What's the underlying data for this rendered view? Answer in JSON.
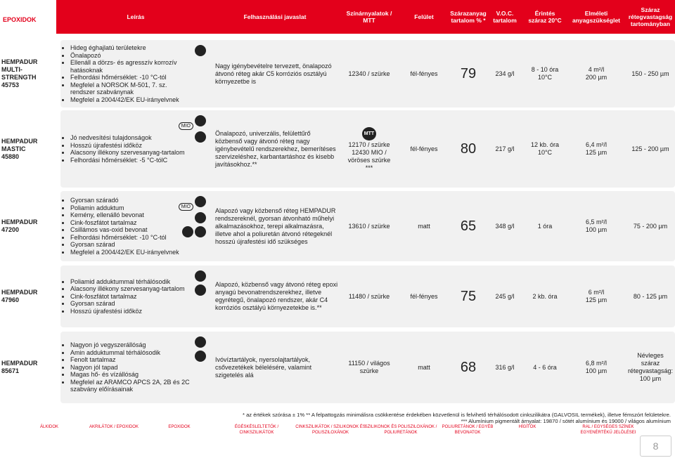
{
  "header": {
    "section": "EPOXIDOK",
    "columns": [
      "Leírás",
      "Felhasználási javaslat",
      "Színárnyalatok / MTT",
      "Felület",
      "Szárazanyag tartalom % *",
      "V.O.C. tartalom",
      "Érintés száraz 20°C",
      "Elméleti anyagszükséglet",
      "Száraz rétegvastagság tartományban"
    ]
  },
  "rows": [
    {
      "name": [
        "HEMPADUR",
        "MULTI-",
        "STRENGTH",
        "45753"
      ],
      "badges": [],
      "features": [
        "Hideg éghajlatú területekre",
        "Önalapozó",
        "Ellenáll a dörzs- és agresszív korrozív hatásoknak",
        "Felhordási hőmérséklet: -10 °C-tól",
        "Megfelel a NORSOK M-501, 7. sz. rendszer szabványnak",
        "Megfelel a 2004/42/EK EU-irányelvnek"
      ],
      "usage": "Nagy igénybevételre tervezett, önalapozó átvonó réteg akár C5 korróziós osztályú környezetbe is",
      "color_badge": [],
      "color": [
        "12340 / szürke"
      ],
      "surface": "fél-fényes",
      "solids": "79",
      "voc": "234 g/l",
      "touch_dry": [
        "8 - 10 óra",
        "10°C"
      ],
      "coverage": [
        "4 m²/l",
        "200 µm"
      ],
      "thickness": "150 - 250 µm"
    },
    {
      "name": [
        "HEMPADUR",
        "MASTIC",
        "45880"
      ],
      "badges": [
        "MIO"
      ],
      "features": [
        "Jó nedvesítési tulajdonságok",
        "Hosszú újrafestési időköz",
        "Alacsony illékony szervesanyag-tartalom",
        "Felhordási hőmérséklet: -5 °C-tólC"
      ],
      "usage": "Önalapozó, univerzális, felülettűrő közbenső vagy átvonó réteg nagy igénybevételű rendszerekhez, bemerítéses szervizeléshez, karbantartáshoz és kisebb javításokhoz.**",
      "color_badge": [
        "MTT"
      ],
      "color": [
        "12170 / szürke",
        "12430 MIO /",
        "vöröses szürke",
        "***"
      ],
      "surface": "fél-fényes",
      "solids": "80",
      "voc": "217 g/l",
      "touch_dry": [
        "12 kb. óra",
        "10°C"
      ],
      "coverage": [
        "6,4 m²/l",
        "125 µm"
      ],
      "thickness": "125 - 200 µm"
    },
    {
      "name": [
        "HEMPADUR",
        "47200"
      ],
      "badges": [
        "MIO"
      ],
      "features": [
        "Gyorsan száradó",
        "Poliamin adduktum",
        "Kemény, ellenálló bevonat",
        "Cink-foszfátot tartalmaz",
        "Csillámos vas-oxid bevonat",
        "Felhordási hőmérséklet: -10 °C-tól",
        "Gyorsan szárad",
        "Megfelel a 2004/42/EK EU-irányelvnek"
      ],
      "usage": "Alapozó vagy közbenső réteg HEMPADUR rendszereknél, gyorsan átvonható műhelyi alkalmazásokhoz, terepi alkalmazásra, illetve ahol a poliuretán átvonó rétegeknél hosszú újrafestési idő szükséges",
      "color_badge": [],
      "color": [
        "13610 / szürke"
      ],
      "surface": "matt",
      "solids": "65",
      "voc": "348 g/l",
      "touch_dry": [
        "1 óra"
      ],
      "coverage": [
        "6,5 m²/l",
        "100 µm"
      ],
      "thickness": "75 - 200 µm"
    },
    {
      "name": [
        "HEMPADUR",
        "47960"
      ],
      "badges": [],
      "features": [
        "Poliamid adduktummal térhálósodik",
        "Alacsony illékony szervesanyag-tartalom",
        "Cink-foszfátot tartalmaz",
        "Gyorsan szárad",
        "Hosszú újrafestési időköz"
      ],
      "usage": "Alapozó, közbenső vagy átvonó réteg epoxi anyagú bevonatrendszerekhez, illetve egyrétegű, önalapozó rendszer, akár C4 korróziós osztályú környezetekbe is.**",
      "color_badge": [],
      "color": [
        "11480 / szürke"
      ],
      "surface": "fél-fényes",
      "solids": "75",
      "voc": "245 g/l",
      "touch_dry": [
        "2 kb. óra"
      ],
      "coverage": [
        "6 m²/l",
        "125 µm"
      ],
      "thickness": "80 - 125 µm"
    },
    {
      "name": [
        "HEMPADUR",
        "85671"
      ],
      "badges": [],
      "features": [
        "Nagyon jó vegyszerállóság",
        "Amin adduktummal térhálósodik",
        "Fenolt tartalmaz",
        "Nagyon jól tapad",
        "Magas hő- és vízállóság",
        "Megfelel az ARAMCO APCS 2A, 2B és 2C szabvány előírásainak"
      ],
      "usage": "Ivóvíztartályok, nyersolajtartályok, csővezetékek bélelésére, valamint szigetelés alá",
      "color_badge": [],
      "color": [
        "11150 / világos szürke"
      ],
      "surface": "matt",
      "solids": "68",
      "voc": "316 g/l",
      "touch_dry": [
        "4 - 6 óra"
      ],
      "coverage": [
        "6,8 m²/l",
        "100 µm"
      ],
      "thickness": "Névleges száraz rétegvastagság: 100 µm"
    }
  ],
  "footnotes": [
    "* az értékek szórása ± 1% ** A felpattogzás minimálisra csökkentése érdekében közvetlenül is felvihető térhálósodott cinkszilikátra (GALVOSIL termékek), illetve fémszórt felületekre.",
    "*** Alumínium pigmentált árnyalat: 19870 / sötét alumínium és 19000 / világos alumínium"
  ],
  "footer": {
    "nav": [
      "ÁLKIDOK",
      "AKRILÁTOK / EPOXIDOK",
      "EPOXIDOK",
      "ÉGÉSKÉSLELTETŐK / CINKSZILIKÁTOK",
      "CINKSZILIKÁTOK / SZILIKONOK ÉS POLISZILOXÁNOK",
      "SZILIKONOK ÉS POLISZILOXÁNOK / POLIURETÁNOK",
      "POLIURETÁNOK / EGYÉB BEVONATOK",
      "HÍGÍTÓK",
      "RAL / EGYSÉGES SZÍNEK EGYENÉRTÉKŰ JELÖLÉSEI"
    ],
    "page": "8"
  }
}
